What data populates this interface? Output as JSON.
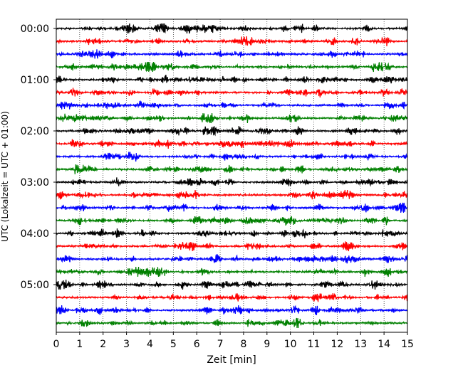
{
  "chart_data": {
    "type": "line",
    "title": "",
    "xlabel": "Zeit  [min]",
    "ylabel": "UTC (Lokalzeit = UTC + 01:00)",
    "xlim": [
      0,
      15
    ],
    "x_ticks": [
      0,
      1,
      2,
      3,
      4,
      5,
      6,
      7,
      8,
      9,
      10,
      11,
      12,
      13,
      14,
      15
    ],
    "x_tick_labels": [
      "0",
      "1",
      "2",
      "3",
      "4",
      "5",
      "6",
      "7",
      "8",
      "9",
      "10",
      "11",
      "12",
      "13",
      "14",
      "15"
    ],
    "y_tick_labels": [
      "00:00",
      "01:00",
      "02:00",
      "03:00",
      "04:00",
      "05:00"
    ],
    "y_tick_rows": [
      0,
      4,
      8,
      12,
      16,
      20
    ],
    "grid": "vertical dotted",
    "row_minutes": 15,
    "row_count": 24,
    "trace_colors": [
      "#000000",
      "#ff0000",
      "#0000ff",
      "#008000"
    ],
    "row_start_times": [
      "00:00",
      "00:15",
      "00:30",
      "00:45",
      "01:00",
      "01:15",
      "01:30",
      "01:45",
      "02:00",
      "02:15",
      "02:30",
      "02:45",
      "03:00",
      "03:15",
      "03:30",
      "03:45",
      "04:00",
      "04:15",
      "04:30",
      "04:45",
      "05:00",
      "05:15",
      "05:30",
      "05:45"
    ],
    "notable_events": [
      {
        "row": 12,
        "minute": 10.0,
        "relative_amplitude": 2.0
      },
      {
        "row": 15,
        "minute": 6.05,
        "relative_amplitude": 2.5
      },
      {
        "row": 20,
        "minute": 5.4,
        "relative_amplitude": 2.0
      },
      {
        "row": 14,
        "minute": 13.1,
        "relative_amplitude": 1.6
      }
    ]
  }
}
